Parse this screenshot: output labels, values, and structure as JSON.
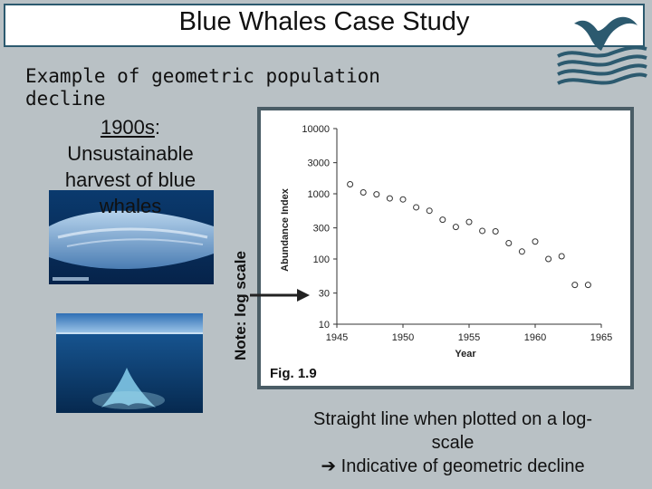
{
  "slide": {
    "title": "Blue Whales Case Study",
    "intro_line1": "Example of geometric population",
    "intro_line2": "decline",
    "sub_year": "1900s",
    "sub_colon": ":",
    "sub_line2": "Unsustainable",
    "sub_line3": "harvest of blue",
    "sub_line4": "whales",
    "note": "Note: log scale",
    "fig_label": "Fig. 1.9",
    "caption_line1": "Straight line when plotted on a log-",
    "caption_line2": "scale",
    "caption_line3": "Indicative of geometric decline",
    "caption_arrow": "➔"
  },
  "colors": {
    "background": "#b9c1c5",
    "title_border": "#2c5a6f",
    "chart_frame": "#4a5d66",
    "logo": "#2c5a6f"
  },
  "icons": {
    "logo": "whale-tail-waves-icon",
    "arrow": "arrow-right-icon"
  },
  "chart_data": {
    "type": "scatter",
    "xlabel": "Year",
    "ylabel": "Abundance Index",
    "x_ticks": [
      1945,
      1950,
      1955,
      1960,
      1965
    ],
    "x_tick_labels": [
      "1945",
      "1950",
      "1955",
      "1960",
      "1965"
    ],
    "y_ticks": [
      10,
      30,
      100,
      300,
      1000,
      3000,
      10000
    ],
    "y_tick_labels": [
      "10",
      "30",
      "100",
      "300",
      "1000",
      "3000",
      "10000"
    ],
    "y_scale": "log",
    "xlim": [
      1945,
      1965
    ],
    "ylim": [
      10,
      10000
    ],
    "grid": false,
    "points": [
      {
        "x": 1946,
        "y": 1400
      },
      {
        "x": 1947,
        "y": 1050
      },
      {
        "x": 1948,
        "y": 980
      },
      {
        "x": 1949,
        "y": 850
      },
      {
        "x": 1950,
        "y": 820
      },
      {
        "x": 1951,
        "y": 620
      },
      {
        "x": 1952,
        "y": 550
      },
      {
        "x": 1953,
        "y": 400
      },
      {
        "x": 1954,
        "y": 310
      },
      {
        "x": 1955,
        "y": 370
      },
      {
        "x": 1956,
        "y": 270
      },
      {
        "x": 1957,
        "y": 265
      },
      {
        "x": 1958,
        "y": 175
      },
      {
        "x": 1959,
        "y": 130
      },
      {
        "x": 1960,
        "y": 185
      },
      {
        "x": 1961,
        "y": 100
      },
      {
        "x": 1962,
        "y": 110
      },
      {
        "x": 1963,
        "y": 40
      },
      {
        "x": 1964,
        "y": 40
      }
    ]
  }
}
